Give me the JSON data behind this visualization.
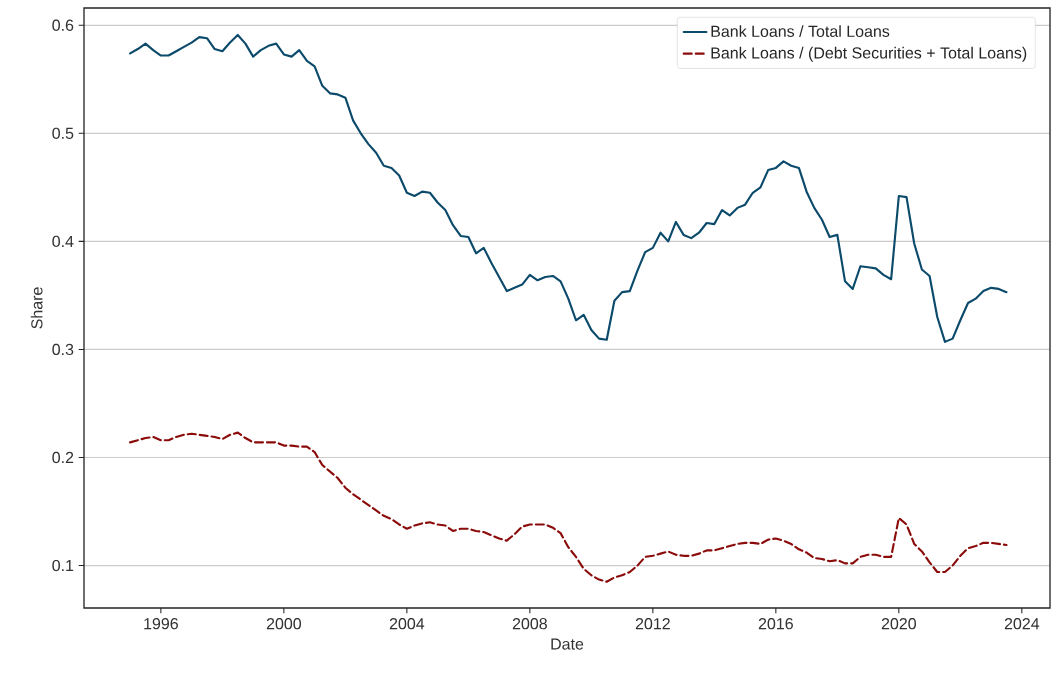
{
  "chart_data": {
    "type": "line",
    "xlabel": "Date",
    "ylabel": "Share",
    "xlim": [
      "1993-07",
      "2024-12"
    ],
    "xticks": [
      "1996",
      "2000",
      "2004",
      "2008",
      "2012",
      "2016",
      "2020",
      "2024"
    ],
    "ylim": [
      0.0607,
      0.616
    ],
    "yticks": [
      0.1,
      0.2,
      0.3,
      0.4,
      0.5,
      0.6
    ],
    "grid": "y",
    "legend": "top right",
    "marker": "none",
    "x": [
      "1995-01",
      "1995-04",
      "1995-07",
      "1995-10",
      "1996-01",
      "1996-04",
      "1996-07",
      "1996-10",
      "1997-01",
      "1997-04",
      "1997-07",
      "1997-10",
      "1998-01",
      "1998-04",
      "1998-07",
      "1998-10",
      "1999-01",
      "1999-04",
      "1999-07",
      "1999-10",
      "2000-01",
      "2000-04",
      "2000-07",
      "2000-10",
      "2001-01",
      "2001-04",
      "2001-07",
      "2001-10",
      "2002-01",
      "2002-04",
      "2002-07",
      "2002-10",
      "2003-01",
      "2003-04",
      "2003-07",
      "2003-10",
      "2004-01",
      "2004-04",
      "2004-07",
      "2004-10",
      "2005-01",
      "2005-04",
      "2005-07",
      "2005-10",
      "2006-01",
      "2006-04",
      "2006-07",
      "2006-10",
      "2007-01",
      "2007-04",
      "2007-07",
      "2007-10",
      "2008-01",
      "2008-04",
      "2008-07",
      "2008-10",
      "2009-01",
      "2009-04",
      "2009-07",
      "2009-10",
      "2010-01",
      "2010-04",
      "2010-07",
      "2010-10",
      "2011-01",
      "2011-04",
      "2011-07",
      "2011-10",
      "2012-01",
      "2012-04",
      "2012-07",
      "2012-10",
      "2013-01",
      "2013-04",
      "2013-07",
      "2013-10",
      "2014-01",
      "2014-04",
      "2014-07",
      "2014-10",
      "2015-01",
      "2015-04",
      "2015-07",
      "2015-10",
      "2016-01",
      "2016-04",
      "2016-07",
      "2016-10",
      "2017-01",
      "2017-04",
      "2017-07",
      "2017-10",
      "2018-01",
      "2018-04",
      "2018-07",
      "2018-10",
      "2019-01",
      "2019-04",
      "2019-07",
      "2019-10",
      "2020-01",
      "2020-04",
      "2020-07",
      "2020-10",
      "2021-01",
      "2021-04",
      "2021-07",
      "2021-10",
      "2022-01",
      "2022-04",
      "2022-07",
      "2022-10",
      "2023-01",
      "2023-04",
      "2023-07"
    ],
    "series": [
      {
        "name": "Bank Loans / Total Loans",
        "color": "#0b4a6b",
        "line_style": "solid",
        "values": [
          0.574,
          0.578,
          0.583,
          0.577,
          0.572,
          0.572,
          0.576,
          0.58,
          0.584,
          0.589,
          0.588,
          0.578,
          0.576,
          0.584,
          0.591,
          0.583,
          0.571,
          0.577,
          0.581,
          0.583,
          0.573,
          0.571,
          0.577,
          0.567,
          0.562,
          0.544,
          0.537,
          0.536,
          0.533,
          0.512,
          0.5,
          0.49,
          0.482,
          0.47,
          0.468,
          0.461,
          0.445,
          0.442,
          0.446,
          0.445,
          0.436,
          0.429,
          0.415,
          0.405,
          0.404,
          0.389,
          0.394,
          0.38,
          0.367,
          0.354,
          0.357,
          0.36,
          0.369,
          0.364,
          0.367,
          0.368,
          0.363,
          0.347,
          0.327,
          0.332,
          0.318,
          0.31,
          0.309,
          0.345,
          0.353,
          0.354,
          0.373,
          0.39,
          0.394,
          0.408,
          0.4,
          0.418,
          0.406,
          0.403,
          0.408,
          0.417,
          0.416,
          0.429,
          0.424,
          0.431,
          0.434,
          0.445,
          0.45,
          0.466,
          0.468,
          0.474,
          0.47,
          0.468,
          0.446,
          0.431,
          0.42,
          0.404,
          0.406,
          0.363,
          0.356,
          0.377,
          0.376,
          0.375,
          0.369,
          0.365,
          0.442,
          0.441,
          0.398,
          0.374,
          0.368,
          0.33,
          0.307,
          0.31,
          0.327,
          0.343,
          0.347,
          0.354,
          0.357,
          0.356,
          0.353
        ]
      },
      {
        "name": "Bank Loans / (Debt Securities + Total Loans)",
        "color": "#8b0a0a",
        "line_style": "dashed",
        "values": [
          0.214,
          0.216,
          0.218,
          0.219,
          0.216,
          0.216,
          0.219,
          0.221,
          0.222,
          0.221,
          0.22,
          0.219,
          0.217,
          0.221,
          0.223,
          0.218,
          0.214,
          0.214,
          0.214,
          0.214,
          0.211,
          0.211,
          0.21,
          0.21,
          0.205,
          0.193,
          0.187,
          0.181,
          0.172,
          0.166,
          0.161,
          0.156,
          0.151,
          0.146,
          0.143,
          0.138,
          0.134,
          0.137,
          0.139,
          0.14,
          0.138,
          0.137,
          0.132,
          0.134,
          0.134,
          0.132,
          0.131,
          0.128,
          0.125,
          0.123,
          0.129,
          0.136,
          0.138,
          0.138,
          0.138,
          0.135,
          0.13,
          0.117,
          0.108,
          0.097,
          0.091,
          0.087,
          0.085,
          0.089,
          0.091,
          0.094,
          0.1,
          0.108,
          0.109,
          0.111,
          0.113,
          0.11,
          0.109,
          0.109,
          0.111,
          0.114,
          0.114,
          0.116,
          0.118,
          0.12,
          0.121,
          0.121,
          0.12,
          0.124,
          0.125,
          0.123,
          0.12,
          0.115,
          0.112,
          0.107,
          0.106,
          0.104,
          0.105,
          0.102,
          0.102,
          0.108,
          0.11,
          0.11,
          0.108,
          0.108,
          0.144,
          0.138,
          0.12,
          0.113,
          0.103,
          0.094,
          0.094,
          0.1,
          0.109,
          0.116,
          0.118,
          0.121,
          0.121,
          0.12,
          0.119
        ]
      }
    ]
  }
}
